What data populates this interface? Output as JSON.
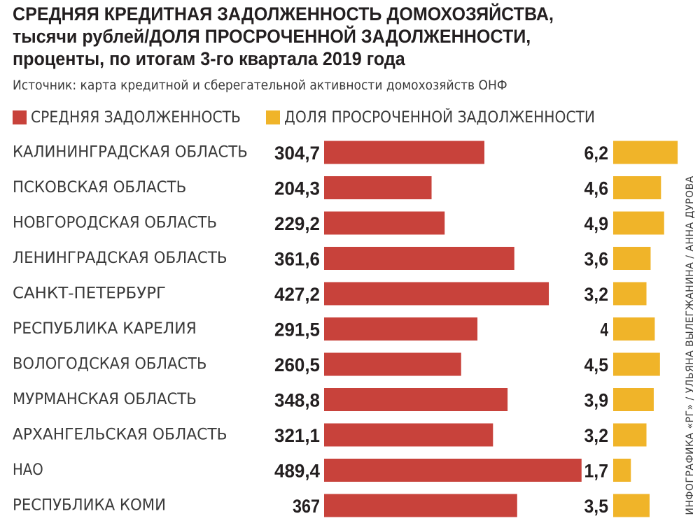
{
  "title": "СРЕДНЯЯ КРЕДИТНАЯ ЗАДОЛЖЕННОСТЬ ДОМОХОЗЯЙСТВА, тысячи рублей/ДОЛЯ ПРОСРОЧЕННОЙ ЗАДОЛЖЕННОСТИ, проценты, по итогам 3-го квартала 2019 года",
  "source": "Источник: карта кредитной и сберегательной активности домохозяйств ОНФ",
  "credit": "ИНФОГРАФИКА «РГ» / УЛЬЯНА ВЫЛЕГЖАНИНА / АННА ДУРОВА",
  "colors": {
    "debt": "#c8423b",
    "overdue": "#f0b429"
  },
  "chart_data": {
    "type": "bar",
    "orientation": "horizontal",
    "categories": [
      "КАЛИНИНГРАДСКАЯ ОБЛАСТЬ",
      "ПСКОВСКАЯ ОБЛАСТЬ",
      "НОВГОРОДСКАЯ ОБЛАСТЬ",
      "ЛЕНИНГРАДСКАЯ ОБЛАСТЬ",
      "САНКТ-ПЕТЕРБУРГ",
      "РЕСПУБЛИКА КАРЕЛИЯ",
      "ВОЛОГОДСКАЯ ОБЛАСТЬ",
      "МУРМАНСКАЯ ОБЛАСТЬ",
      "АРХАНГЕЛЬСКАЯ ОБЛАСТЬ",
      "НАО",
      "РЕСПУБЛИКА КОМИ"
    ],
    "series": [
      {
        "name": "СРЕДНЯЯ ЗАДОЛЖЕННОСТЬ",
        "color": "#c8423b",
        "values": [
          304.7,
          204.3,
          229.2,
          361.6,
          427.2,
          291.5,
          260.5,
          348.8,
          321.1,
          489.4,
          367
        ],
        "labels": [
          "304,7",
          "204,3",
          "229,2",
          "361,6",
          "427,2",
          "291,5",
          "260,5",
          "348,8",
          "321,1",
          "489,4",
          "367"
        ]
      },
      {
        "name": "ДОЛЯ ПРОСРОЧЕННОЙ ЗАДОЛЖЕННОСТИ",
        "color": "#f0b429",
        "values": [
          6.2,
          4.6,
          4.9,
          3.6,
          3.2,
          4,
          4.5,
          3.9,
          3.2,
          1.7,
          3.5
        ],
        "labels": [
          "6,2",
          "4,6",
          "4,9",
          "3,6",
          "3,2",
          "4",
          "4,5",
          "3,9",
          "3,2",
          "1,7",
          "3,5"
        ]
      }
    ],
    "legend": "top-left",
    "grid": false
  }
}
